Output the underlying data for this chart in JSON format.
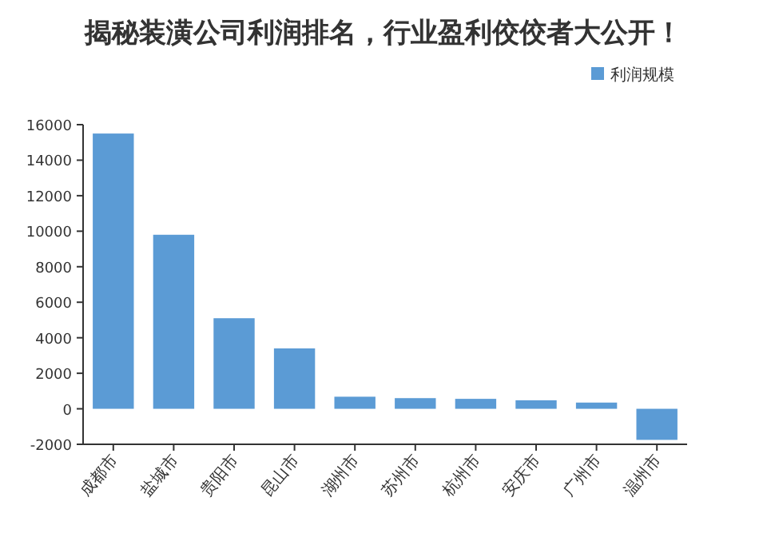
{
  "chart_data": {
    "type": "bar",
    "title": "揭秘装潢公司利润排名，行业盈利佼佼者大公开！",
    "categories": [
      "成都市",
      "盐城市",
      "贵阳市",
      "昆山市",
      "湖州市",
      "苏州市",
      "杭州市",
      "安庆市",
      "广州市",
      "温州市"
    ],
    "series": [
      {
        "name": "利润规模",
        "color": "#5b9bd5",
        "values": [
          15500,
          9800,
          5100,
          3400,
          680,
          600,
          560,
          480,
          350,
          -1750
        ]
      }
    ],
    "ylim": [
      -2000,
      16000
    ],
    "yticks": [
      -2000,
      0,
      2000,
      4000,
      6000,
      8000,
      10000,
      12000,
      14000,
      16000
    ],
    "legend": "top right"
  }
}
